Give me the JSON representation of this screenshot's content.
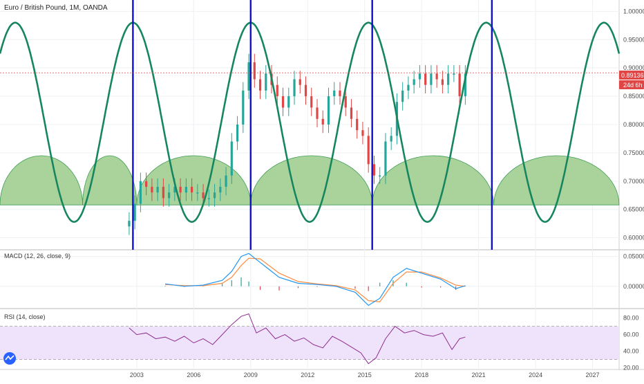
{
  "header": {
    "title": "Euro / British Pound, 1M, OANDA"
  },
  "price_badge": {
    "value": "0.89136",
    "countdown": "24d 6h",
    "color": "#e04646"
  },
  "colors": {
    "cycle_sine": "#16865f",
    "arcs_fill": "#a9d39b",
    "arcs_stroke": "#3f9b56",
    "vertical_lines": "#1010c8",
    "candle_up": "#26a69a",
    "candle_down": "#e04646",
    "macd_line": "#2196f3",
    "signal_line": "#ff8a3d",
    "rsi_line": "#8e2e8e",
    "rsi_band": "#efe2fb"
  },
  "chart_data": [
    {
      "type": "line",
      "title": "Euro / British Pound, 1M, OANDA",
      "y_ticks": [
        "1.00000",
        "0.95000",
        "0.90000",
        "0.85000",
        "0.80000",
        "0.75000",
        "0.70000",
        "0.65000",
        "0.60000"
      ],
      "ylim": [
        0.58,
        1.02
      ],
      "x_ticks": [
        "2003",
        "2006",
        "2009",
        "2012",
        "2015",
        "2018",
        "2021",
        "2024",
        "2027"
      ],
      "xlim": [
        1995.8,
        2028.4
      ],
      "last_price": 0.89136,
      "vertical_lines_at": [
        2002.8,
        2009.0,
        2015.4,
        2021.7
      ],
      "cycle_sine": {
        "period_years": 6.2,
        "peak_years": [
          1999.7,
          2009.0,
          2021.7
        ],
        "trough_years": [
          2000.15,
          2002.8,
          2015.4
        ],
        "max": 0.98,
        "min": 0.628
      },
      "arcs": {
        "base": 0.658,
        "top": 0.745,
        "segments": [
          [
            1995.8,
            2000.15
          ],
          [
            2000.15,
            2003.0
          ],
          [
            2003.0,
            2009.0
          ],
          [
            2009.0,
            2015.4
          ],
          [
            2015.4,
            2021.8
          ],
          [
            2021.8,
            2028.4
          ]
        ]
      },
      "candles": {
        "x": [
          2002.6,
          2002.9,
          2003.2,
          2003.5,
          2003.8,
          2004.1,
          2004.4,
          2004.7,
          2005.0,
          2005.3,
          2005.6,
          2005.9,
          2006.2,
          2006.5,
          2006.8,
          2007.1,
          2007.4,
          2007.7,
          2008.0,
          2008.3,
          2008.6,
          2008.9,
          2009.2,
          2009.5,
          2009.8,
          2010.1,
          2010.4,
          2010.7,
          2011.0,
          2011.3,
          2011.6,
          2011.9,
          2012.2,
          2012.5,
          2012.8,
          2013.1,
          2013.4,
          2013.7,
          2014.0,
          2014.3,
          2014.6,
          2014.9,
          2015.2,
          2015.5,
          2015.8,
          2016.1,
          2016.4,
          2016.7,
          2017.0,
          2017.3,
          2017.6,
          2017.9,
          2018.2,
          2018.5,
          2018.8,
          2019.1,
          2019.4,
          2019.7,
          2020.0,
          2020.3
        ],
        "close": [
          0.63,
          0.66,
          0.7,
          0.69,
          0.68,
          0.69,
          0.67,
          0.68,
          0.69,
          0.68,
          0.69,
          0.68,
          0.68,
          0.67,
          0.67,
          0.68,
          0.69,
          0.71,
          0.77,
          0.8,
          0.86,
          0.91,
          0.88,
          0.86,
          0.89,
          0.87,
          0.85,
          0.83,
          0.85,
          0.88,
          0.87,
          0.85,
          0.83,
          0.81,
          0.8,
          0.85,
          0.86,
          0.85,
          0.83,
          0.81,
          0.79,
          0.78,
          0.73,
          0.71,
          0.71,
          0.77,
          0.78,
          0.84,
          0.86,
          0.87,
          0.88,
          0.89,
          0.87,
          0.89,
          0.88,
          0.87,
          0.89,
          0.89,
          0.85,
          0.89
        ]
      }
    },
    {
      "type": "line",
      "title": "MACD (12, 26, close, 9)",
      "y_ticks": [
        "0.05000",
        "0.00000"
      ],
      "ylim": [
        -0.035,
        0.06
      ],
      "series": [
        {
          "values": [
            [
              2004.5,
              0.004
            ],
            [
              2005.5,
              0.0
            ],
            [
              2006.5,
              0.002
            ],
            [
              2007.5,
              0.01
            ],
            [
              2008.0,
              0.025
            ],
            [
              2008.5,
              0.05
            ],
            [
              2008.9,
              0.055
            ],
            [
              2009.5,
              0.04
            ],
            [
              2010.5,
              0.015
            ],
            [
              2011.5,
              0.005
            ],
            [
              2012.5,
              0.003
            ],
            [
              2013.5,
              0.0
            ],
            [
              2014.5,
              -0.01
            ],
            [
              2015.2,
              -0.032
            ],
            [
              2015.8,
              -0.02
            ],
            [
              2016.5,
              0.015
            ],
            [
              2017.2,
              0.03
            ],
            [
              2018.0,
              0.022
            ],
            [
              2019.0,
              0.012
            ],
            [
              2019.8,
              -0.004
            ],
            [
              2020.3,
              0.001
            ]
          ]
        },
        {
          "values": [
            [
              2004.5,
              0.003
            ],
            [
              2005.5,
              0.001
            ],
            [
              2006.5,
              0.001
            ],
            [
              2007.5,
              0.005
            ],
            [
              2008.0,
              0.015
            ],
            [
              2008.5,
              0.035
            ],
            [
              2008.9,
              0.047
            ],
            [
              2009.5,
              0.046
            ],
            [
              2010.5,
              0.022
            ],
            [
              2011.5,
              0.008
            ],
            [
              2012.5,
              0.004
            ],
            [
              2013.5,
              0.001
            ],
            [
              2014.5,
              -0.006
            ],
            [
              2015.2,
              -0.024
            ],
            [
              2015.8,
              -0.026
            ],
            [
              2016.5,
              0.005
            ],
            [
              2017.2,
              0.024
            ],
            [
              2018.0,
              0.024
            ],
            [
              2019.0,
              0.014
            ],
            [
              2019.8,
              0.002
            ],
            [
              2020.3,
              0.0
            ]
          ]
        }
      ]
    },
    {
      "type": "line",
      "title": "RSI (14, close)",
      "y_ticks": [
        "80.00",
        "60.00",
        "40.00",
        "20.00"
      ],
      "ylim": [
        18,
        88
      ],
      "band": [
        30,
        70
      ],
      "series": [
        {
          "values": [
            [
              2002.6,
              68
            ],
            [
              2003.0,
              60
            ],
            [
              2003.5,
              62
            ],
            [
              2004.0,
              55
            ],
            [
              2004.5,
              57
            ],
            [
              2005.0,
              52
            ],
            [
              2005.5,
              58
            ],
            [
              2006.0,
              50
            ],
            [
              2006.5,
              55
            ],
            [
              2007.0,
              48
            ],
            [
              2007.5,
              60
            ],
            [
              2008.0,
              72
            ],
            [
              2008.5,
              82
            ],
            [
              2008.9,
              85
            ],
            [
              2009.3,
              62
            ],
            [
              2009.8,
              68
            ],
            [
              2010.3,
              55
            ],
            [
              2010.8,
              60
            ],
            [
              2011.3,
              52
            ],
            [
              2011.8,
              56
            ],
            [
              2012.3,
              48
            ],
            [
              2012.8,
              44
            ],
            [
              2013.3,
              58
            ],
            [
              2013.8,
              52
            ],
            [
              2014.3,
              45
            ],
            [
              2014.8,
              38
            ],
            [
              2015.2,
              25
            ],
            [
              2015.6,
              32
            ],
            [
              2016.1,
              55
            ],
            [
              2016.6,
              70
            ],
            [
              2017.1,
              62
            ],
            [
              2017.6,
              65
            ],
            [
              2018.1,
              60
            ],
            [
              2018.6,
              58
            ],
            [
              2019.1,
              62
            ],
            [
              2019.6,
              42
            ],
            [
              2020.0,
              55
            ],
            [
              2020.3,
              57
            ]
          ]
        }
      ]
    }
  ]
}
